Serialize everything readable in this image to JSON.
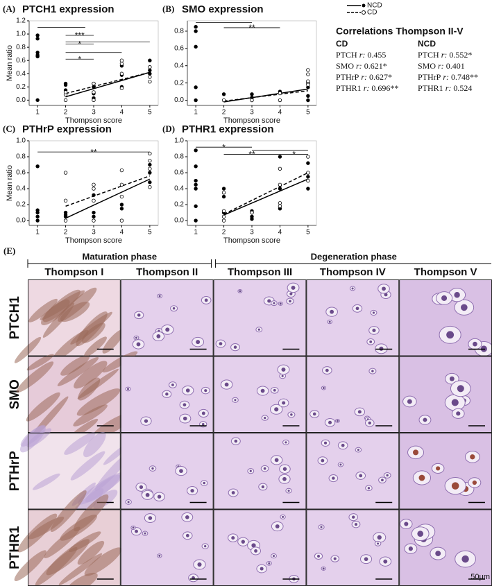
{
  "chart_data": [
    {
      "type": "scatter",
      "panel_label": "(A)",
      "title": "PTCH1 expression",
      "xlabel": "Thompson score",
      "ylabel": "Mean ratio",
      "xlim": [
        0.7,
        5.3
      ],
      "xticks": [
        1,
        2,
        3,
        4,
        5
      ],
      "ylim": [
        -0.08,
        1.2
      ],
      "yticks": [
        {
          "value": 0,
          "label": "0.0"
        },
        0.2,
        0.4,
        0.6,
        0.8,
        {
          "value": 1,
          "label": "1.0"
        },
        1.2
      ],
      "series": [
        {
          "name": "NCD",
          "color": "#000000",
          "marker": "filled",
          "line_style": "solid",
          "x": [
            1,
            1,
            1,
            1,
            1,
            1,
            2,
            2,
            2,
            3,
            3,
            3,
            3,
            4,
            4,
            4,
            5,
            5,
            5
          ],
          "values": [
            0.98,
            0.93,
            0.72,
            0.68,
            0.66,
            0.0,
            0.25,
            0.23,
            0.15,
            0.25,
            0.2,
            0.1,
            0.03,
            0.52,
            0.38,
            0.2,
            0.6,
            0.45,
            0.4
          ],
          "trend": {
            "x": [
              2,
              5
            ],
            "values": [
              0.05,
              0.42
            ]
          }
        },
        {
          "name": "CD",
          "color": "#000000",
          "marker": "open",
          "line_style": "dashed",
          "x": [
            2,
            2,
            2,
            3,
            3,
            3,
            4,
            4,
            4,
            4,
            5,
            5,
            5
          ],
          "values": [
            0.08,
            0.0,
            0.12,
            0.25,
            0.12,
            0.0,
            0.6,
            0.55,
            0.4,
            0.18,
            0.5,
            0.35,
            0.28
          ],
          "trend": {
            "x": [
              2,
              5
            ],
            "values": [
              0.1,
              0.42
            ]
          }
        }
      ],
      "significance": [
        {
          "x1": 1,
          "x2": 2.7,
          "y": 1.1
        },
        {
          "x1": 2,
          "x2": 3,
          "y": 0.98,
          "label": "***"
        },
        {
          "x1": 2,
          "x2": 5,
          "y": 0.88
        },
        {
          "x1": 2,
          "x2": 3,
          "y": 0.85,
          "label": "*"
        },
        {
          "x1": 2,
          "x2": 4,
          "y": 0.72
        },
        {
          "x1": 2,
          "x2": 3,
          "y": 0.62,
          "label": "*"
        }
      ]
    },
    {
      "type": "scatter",
      "panel_label": "(B)",
      "title": "SMO expression",
      "xlabel": "Thompson score",
      "xlim": [
        0.7,
        5.3
      ],
      "xticks": [
        1,
        2,
        3,
        4,
        5
      ],
      "ylim": [
        -0.06,
        0.92
      ],
      "yticks": [
        {
          "value": 0,
          "label": "0.0"
        },
        0.2,
        0.4,
        0.6,
        0.8
      ],
      "series": [
        {
          "name": "NCD",
          "color": "#000000",
          "marker": "filled",
          "line_style": "solid",
          "x": [
            1,
            1,
            1,
            1,
            1,
            2,
            3,
            3,
            4,
            5,
            5,
            5,
            5
          ],
          "values": [
            0.85,
            0.8,
            0.62,
            0.15,
            0.0,
            0.07,
            0.07,
            0.03,
            0.1,
            0.2,
            0.15,
            0.05,
            0.0
          ],
          "trend": {
            "x": [
              2,
              5
            ],
            "values": [
              -0.02,
              0.13
            ]
          }
        },
        {
          "name": "CD",
          "color": "#000000",
          "marker": "open",
          "line_style": "dashed",
          "x": [
            2,
            3,
            4,
            4,
            5,
            5,
            5,
            5
          ],
          "values": [
            0.0,
            0.0,
            0.08,
            0.0,
            0.35,
            0.3,
            0.22,
            0.18
          ],
          "trend": {
            "x": [
              2,
              5
            ],
            "values": [
              -0.01,
              0.11
            ]
          }
        }
      ],
      "significance": [
        {
          "x1": 1,
          "x2": 3,
          "y": 0.9
        },
        {
          "x1": 2,
          "x2": 4,
          "y": 0.84,
          "label": "**"
        }
      ]
    },
    {
      "type": "scatter",
      "panel_label": "(C)",
      "title": "PTHrP expression",
      "xlabel": "Thompson score",
      "ylabel": "Mean ratio",
      "xlim": [
        0.7,
        5.3
      ],
      "xticks": [
        1,
        2,
        3,
        4,
        5
      ],
      "ylim": [
        -0.06,
        1.0
      ],
      "yticks": [
        {
          "value": 0,
          "label": "0.0"
        },
        0.2,
        0.4,
        0.6,
        0.8,
        {
          "value": 1,
          "label": "1.0"
        }
      ],
      "series": [
        {
          "name": "NCD",
          "color": "#000000",
          "marker": "filled",
          "line_style": "solid",
          "x": [
            1,
            1,
            1,
            1,
            1,
            2,
            2,
            2,
            3,
            3,
            3,
            4,
            4,
            5,
            5,
            5
          ],
          "values": [
            0.68,
            0.13,
            0.1,
            0.05,
            0.0,
            0.1,
            0.07,
            0.05,
            0.32,
            0.1,
            0.05,
            0.2,
            0.15,
            0.7,
            0.6,
            0.48
          ],
          "trend": {
            "x": [
              2,
              5
            ],
            "values": [
              0.03,
              0.52
            ]
          }
        },
        {
          "name": "CD",
          "color": "#000000",
          "marker": "open",
          "line_style": "dashed",
          "x": [
            2,
            2,
            2,
            3,
            3,
            3,
            3,
            4,
            4,
            4,
            4,
            5,
            5,
            5,
            5
          ],
          "values": [
            0.6,
            0.25,
            0.0,
            0.45,
            0.4,
            0.25,
            0.0,
            0.63,
            0.45,
            0.3,
            0.0,
            0.84,
            0.75,
            0.65,
            0.42
          ],
          "trend": {
            "x": [
              2,
              5
            ],
            "values": [
              0.18,
              0.56
            ]
          }
        }
      ],
      "significance": [
        {
          "x1": 1,
          "x2": 5,
          "y": 0.86,
          "label": "**"
        }
      ]
    },
    {
      "type": "scatter",
      "panel_label": "(D)",
      "title": "PTHR1 expression",
      "xlabel": "Thompson score",
      "xlim": [
        0.7,
        5.3
      ],
      "xticks": [
        1,
        2,
        3,
        4,
        5
      ],
      "ylim": [
        -0.06,
        1.0
      ],
      "yticks": [
        {
          "value": 0,
          "label": "0.0"
        },
        0.2,
        0.4,
        0.6,
        0.8,
        {
          "value": 1,
          "label": "1.0"
        }
      ],
      "series": [
        {
          "name": "NCD",
          "color": "#000000",
          "marker": "filled",
          "line_style": "solid",
          "x": [
            1,
            1,
            1,
            1,
            1,
            1,
            1,
            2,
            2,
            2,
            3,
            3,
            3,
            3,
            4,
            4,
            4,
            5,
            5,
            5
          ],
          "values": [
            0.88,
            0.68,
            0.5,
            0.45,
            0.4,
            0.18,
            0.0,
            0.4,
            0.3,
            0.1,
            0.12,
            0.1,
            0.05,
            0.02,
            0.8,
            0.4,
            0.15,
            0.72,
            0.55,
            0.4
          ],
          "trend": {
            "x": [
              2,
              5
            ],
            "values": [
              0.07,
              0.52
            ]
          }
        },
        {
          "name": "CD",
          "color": "#000000",
          "marker": "open",
          "line_style": "dashed",
          "x": [
            2,
            2,
            2,
            2,
            3,
            4,
            4,
            4,
            4,
            5,
            5,
            5
          ],
          "values": [
            0.35,
            0.12,
            0.05,
            0.0,
            0.1,
            0.65,
            0.45,
            0.22,
            0.18,
            0.8,
            0.6,
            0.5
          ],
          "trend": {
            "x": [
              2,
              5
            ],
            "values": [
              0.08,
              0.6
            ]
          }
        }
      ],
      "significance": [
        {
          "x1": 1,
          "x2": 3,
          "y": 0.92,
          "label": "*"
        },
        {
          "x1": 3,
          "x2": 5,
          "y": 0.88
        },
        {
          "x1": 2,
          "x2": 4,
          "y": 0.83,
          "label": "**"
        },
        {
          "x1": 4,
          "x2": 5,
          "y": 0.83,
          "label": "*"
        }
      ]
    }
  ],
  "correlations": {
    "title": "Correlations Thompson II-V",
    "stat_label": "r:",
    "groups": [
      {
        "name": "CD",
        "entries": [
          {
            "gene": "PTCH",
            "r": 0.455
          },
          {
            "gene": "SMO",
            "r": {
              "value": 0.621,
              "label": "0.621*"
            }
          },
          {
            "gene": "PTHrP",
            "r": {
              "value": 0.627,
              "label": "0.627*"
            }
          },
          {
            "gene": "PTHR1",
            "r": {
              "value": 0.696,
              "label": "0.696**"
            }
          }
        ]
      },
      {
        "name": "NCD",
        "entries": [
          {
            "gene": "PTCH",
            "r": {
              "value": 0.552,
              "label": "0.552*"
            }
          },
          {
            "gene": "SMO",
            "r": 0.401
          },
          {
            "gene": "PTHrP",
            "r": {
              "value": 0.748,
              "label": "0.748**"
            }
          },
          {
            "gene": "PTHR1",
            "r": 0.524
          }
        ]
      }
    ]
  },
  "histology": {
    "panel_label": "(E)",
    "phases": [
      "Maturation phase",
      "Degeneration phase"
    ],
    "columns": [
      "Thompson I",
      "Thompson II",
      "Thompson III",
      "Thompson IV",
      "Thompson V"
    ],
    "rows": [
      "PTCH1",
      "SMO",
      "PTHrP",
      "PTHR1"
    ],
    "scale_bar": "50μm"
  }
}
